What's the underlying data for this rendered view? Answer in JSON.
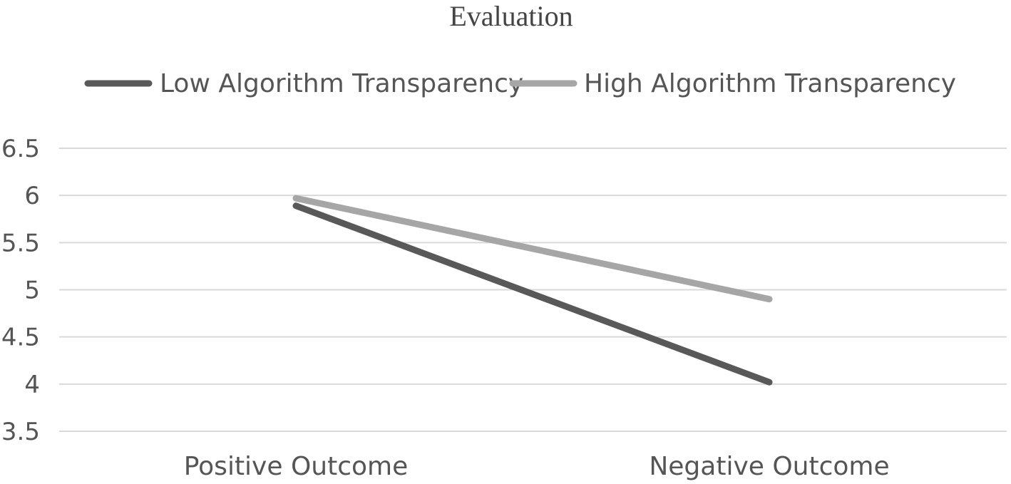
{
  "chart_data": {
    "type": "line",
    "title": "Evaluation",
    "xlabel": "",
    "ylabel": "",
    "categories": [
      "Positive Outcome",
      "Negative Outcome"
    ],
    "y_ticks": [
      "3.5",
      "4",
      "4.5",
      "5",
      "5.5",
      "6",
      "6.5"
    ],
    "ylim": [
      3.5,
      6.5
    ],
    "grid": true,
    "legend_position": "top",
    "series": [
      {
        "name": "Low Algorithm Transparency",
        "values": [
          5.89,
          4.02
        ],
        "color": "#595959"
      },
      {
        "name": "High Algorithm Transparency",
        "values": [
          5.97,
          4.9
        ],
        "color": "#a6a6a6"
      }
    ]
  }
}
